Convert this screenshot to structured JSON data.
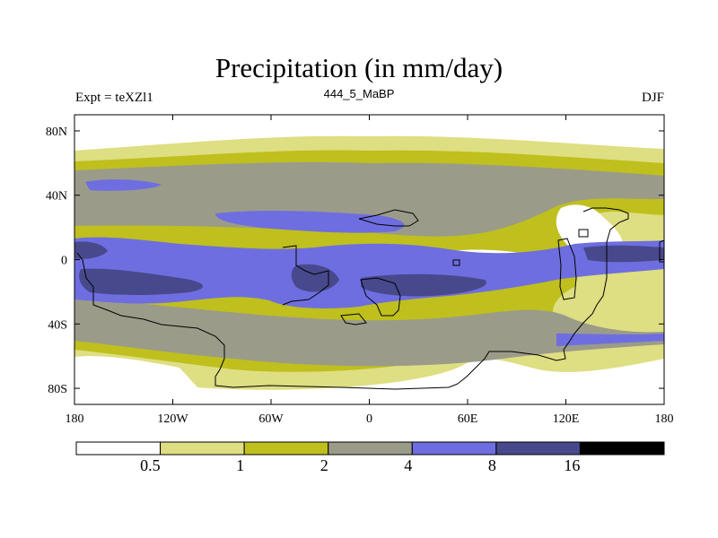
{
  "title": "Precipitation (in mm/day)",
  "experiment": "Expt = teXZl1",
  "period": "444_5_MaBP",
  "season": "DJF",
  "map": {
    "lon_range": [
      -180,
      180
    ],
    "lat_range": [
      -90,
      90
    ],
    "lon_ticks": [
      {
        "lon": -180,
        "label": "180"
      },
      {
        "lon": -120,
        "label": "120W"
      },
      {
        "lon": -60,
        "label": "60W"
      },
      {
        "lon": 0,
        "label": "0"
      },
      {
        "lon": 60,
        "label": "60E"
      },
      {
        "lon": 120,
        "label": "120E"
      },
      {
        "lon": 180,
        "label": "180"
      }
    ],
    "lat_ticks": [
      {
        "lat": 80,
        "label": "80N"
      },
      {
        "lat": 40,
        "label": "40N"
      },
      {
        "lat": 0,
        "label": "0"
      },
      {
        "lat": -40,
        "label": "40S"
      },
      {
        "lat": -80,
        "label": "80S"
      }
    ]
  },
  "colorbar": {
    "levels": [
      "0.5",
      "1",
      "2",
      "4",
      "8",
      "16"
    ],
    "colors": [
      "#ffffff",
      "#dede82",
      "#bfbf1e",
      "#9b9b8a",
      "#6e6ee0",
      "#48488c",
      "#000000"
    ]
  },
  "colors": {
    "white": "#ffffff",
    "pale": "#dede82",
    "olive": "#bfbf1e",
    "grey": "#9b9b8a",
    "blue": "#6e6ee0",
    "navy": "#48488c"
  }
}
